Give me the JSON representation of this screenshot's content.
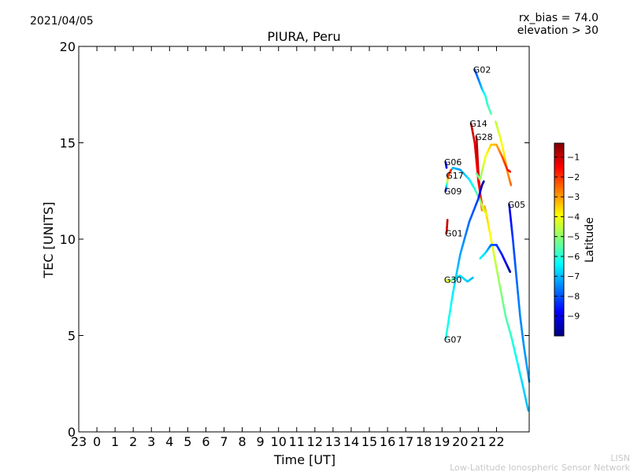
{
  "date": "2021/04/05",
  "annotation_top_right": [
    "rx_bias = 74.0",
    "elevation > 30"
  ],
  "footer": {
    "line1": "LISN",
    "line2": "Low-Latitude Ionospheric Sensor Network"
  },
  "colors": {
    "background": "#ffffff",
    "footer": "#c8c8c8"
  },
  "chart_data": {
    "type": "line",
    "title": "PIURA, Peru",
    "xlabel": "Time [UT]",
    "ylabel": "TEC [UNITS]",
    "x_tick_positions": [
      -1,
      0,
      1,
      2,
      3,
      4,
      5,
      6,
      7,
      8,
      9,
      10,
      11,
      12,
      13,
      14,
      15,
      16,
      17,
      18,
      19,
      20,
      21,
      22
    ],
    "x_tick_labels": [
      "23",
      "0",
      "1",
      "2",
      "3",
      "4",
      "5",
      "6",
      "7",
      "8",
      "9",
      "10",
      "11",
      "12",
      "13",
      "14",
      "15",
      "16",
      "17",
      "18",
      "19",
      "20",
      "21",
      "22"
    ],
    "xlim": [
      -1,
      23.8
    ],
    "ylim": [
      0,
      20
    ],
    "y_ticks": [
      0,
      5,
      10,
      15,
      20
    ],
    "y_tick_labels": [
      "0",
      "5",
      "10",
      "15",
      "20"
    ],
    "grid": false,
    "colorbar": {
      "label": "Latitude",
      "range": [
        -10,
        -0.3
      ],
      "ticks": [
        -9,
        -8,
        -7,
        -6,
        -5,
        -4,
        -3,
        -2,
        -1
      ],
      "tick_labels": [
        "−9",
        "−8",
        "−7",
        "−6",
        "−5",
        "−4",
        "−3",
        "−2",
        "−1"
      ],
      "colormap": [
        "#00007f",
        "#0000ff",
        "#007fff",
        "#00ffff",
        "#7fff7f",
        "#ffff00",
        "#ff7f00",
        "#ff0000",
        "#7f0000"
      ]
    },
    "series": [
      {
        "name": "G02",
        "points": [
          [
            20.8,
            18.8,
            -8.0
          ],
          [
            21.0,
            18.3,
            -7.7
          ],
          [
            21.2,
            17.8,
            -7.0
          ],
          [
            21.4,
            17.4,
            -6.0
          ],
          [
            21.5,
            17.0,
            -5.9
          ],
          [
            21.7,
            16.5,
            -5.5
          ]
        ]
      },
      {
        "name": "G02",
        "points": [
          [
            21.95,
            16.1,
            -4.6
          ],
          [
            22.2,
            15.3,
            -4.2
          ],
          [
            22.4,
            14.5,
            -3.8
          ],
          [
            22.6,
            13.5,
            -3.0
          ],
          [
            22.8,
            12.8,
            -2.5
          ]
        ],
        "show_label": false
      },
      {
        "name": "G14",
        "points": [
          [
            20.6,
            16.0,
            -1.0
          ],
          [
            20.8,
            15.0,
            -1.2
          ],
          [
            21.0,
            13.0,
            -1.6
          ],
          [
            21.2,
            11.8,
            -2.2
          ]
        ]
      },
      {
        "name": "G28",
        "points": [
          [
            20.9,
            15.3,
            -0.8
          ],
          [
            21.0,
            13.5,
            -1.2
          ],
          [
            21.1,
            12.3,
            -1.8
          ],
          [
            21.2,
            11.5,
            -2.8
          ],
          [
            21.35,
            11.7,
            -3.2
          ],
          [
            21.5,
            11.0,
            -3.6
          ],
          [
            21.7,
            10.0,
            -4.0
          ],
          [
            21.9,
            9.0,
            -4.4
          ],
          [
            22.2,
            7.5,
            -5.0
          ],
          [
            22.5,
            6.0,
            -5.5
          ],
          [
            22.8,
            5.0,
            -5.9
          ],
          [
            23.1,
            3.8,
            -6.3
          ],
          [
            23.4,
            2.6,
            -6.7
          ],
          [
            23.75,
            1.1,
            -7.0
          ]
        ]
      },
      {
        "name": "G06",
        "points": [
          [
            19.2,
            14.0,
            -8.5
          ],
          [
            19.25,
            13.7,
            -9.0
          ]
        ]
      },
      {
        "name": "G17",
        "points": [
          [
            19.3,
            13.3,
            -2.5
          ],
          [
            19.6,
            13.7,
            -7.0
          ],
          [
            20.0,
            13.6,
            -7.3
          ],
          [
            20.5,
            13.1,
            -6.6
          ],
          [
            20.8,
            12.6,
            -6.0
          ],
          [
            21.1,
            12.0,
            -5.0
          ],
          [
            21.3,
            11.5,
            -4.3
          ],
          [
            21.5,
            11.2,
            -4.1
          ]
        ]
      },
      {
        "name": "G17",
        "points": [
          [
            20.9,
            13.4,
            -5.5
          ],
          [
            21.1,
            13.1,
            -5.0
          ],
          [
            21.4,
            14.3,
            -4.0
          ],
          [
            21.7,
            14.9,
            -3.5
          ],
          [
            22.0,
            14.9,
            -3.2
          ],
          [
            22.3,
            14.3,
            -2.4
          ],
          [
            22.6,
            13.6,
            -1.8
          ],
          [
            22.75,
            13.5,
            -1.6
          ]
        ],
        "show_label": false
      },
      {
        "name": "G09",
        "points": [
          [
            19.2,
            12.5,
            -9.5
          ],
          [
            19.35,
            13.3,
            -2.0
          ],
          [
            19.5,
            13.6,
            -2.0
          ]
        ]
      },
      {
        "name": "G01",
        "points": [
          [
            19.25,
            10.3,
            -1.2
          ],
          [
            19.3,
            11.0,
            -1.0
          ]
        ]
      },
      {
        "name": "G05",
        "points": [
          [
            22.7,
            11.8,
            -9.2
          ],
          [
            22.9,
            10.0,
            -8.2
          ],
          [
            23.1,
            8.0,
            -7.8
          ],
          [
            23.3,
            6.0,
            -7.5
          ],
          [
            23.5,
            4.5,
            -7.4
          ],
          [
            23.8,
            2.6,
            -7.2
          ]
        ]
      },
      {
        "name": "G30",
        "points": [
          [
            19.2,
            7.9,
            -4.5
          ],
          [
            19.4,
            7.8,
            -4.0
          ],
          [
            19.7,
            8.0,
            -6.3
          ],
          [
            20.0,
            8.1,
            -6.6
          ],
          [
            20.4,
            7.8,
            -6.8
          ],
          [
            20.7,
            8.0,
            -7.0
          ]
        ]
      },
      {
        "name": "G07",
        "points": [
          [
            19.2,
            4.8,
            -6.0
          ],
          [
            19.6,
            7.2,
            -6.5
          ],
          [
            20.0,
            9.2,
            -7.2
          ],
          [
            20.5,
            10.9,
            -7.8
          ],
          [
            21.0,
            12.1,
            -8.2
          ],
          [
            21.2,
            12.8,
            -9.5
          ],
          [
            21.3,
            13.0,
            -9.6
          ]
        ]
      },
      {
        "name": "G07",
        "points": [
          [
            21.1,
            9.0,
            -6.5
          ],
          [
            21.4,
            9.3,
            -6.6
          ],
          [
            21.7,
            9.7,
            -7.8
          ],
          [
            22.0,
            9.7,
            -8.2
          ],
          [
            22.3,
            9.2,
            -8.5
          ],
          [
            22.6,
            8.6,
            -9.2
          ],
          [
            22.75,
            8.3,
            -9.6
          ]
        ],
        "show_label": false
      }
    ]
  }
}
